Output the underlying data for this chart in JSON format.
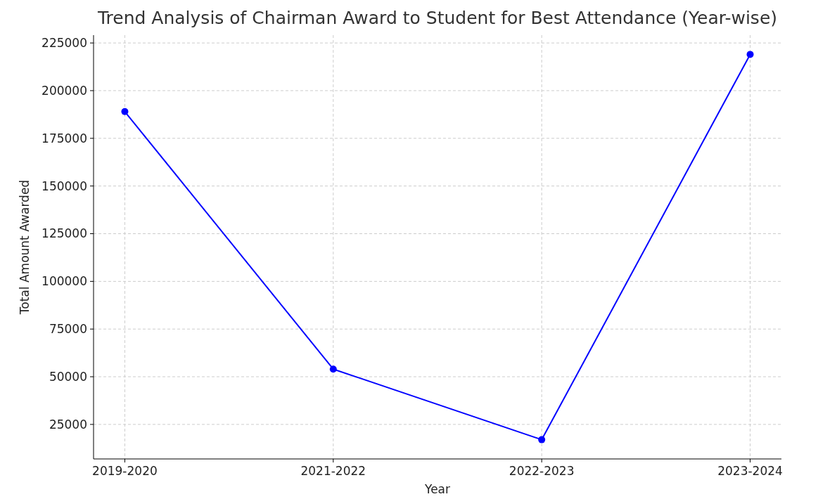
{
  "chart_data": {
    "type": "line",
    "title": "Trend Analysis of Chairman Award to Student for Best Attendance (Year-wise)",
    "xlabel": "Year",
    "ylabel": "Total Amount Awarded",
    "categories": [
      "2019-2020",
      "2021-2022",
      "2022-2023",
      "2023-2024"
    ],
    "series": [
      {
        "color": "#0000ff",
        "values": [
          189000,
          54000,
          17000,
          219000
        ]
      }
    ],
    "ylim": [
      6900,
      229100
    ],
    "yticks": [
      25000,
      50000,
      75000,
      100000,
      125000,
      150000,
      175000,
      200000,
      225000
    ],
    "grid": true,
    "marker": "circle",
    "line_style": "solid"
  }
}
